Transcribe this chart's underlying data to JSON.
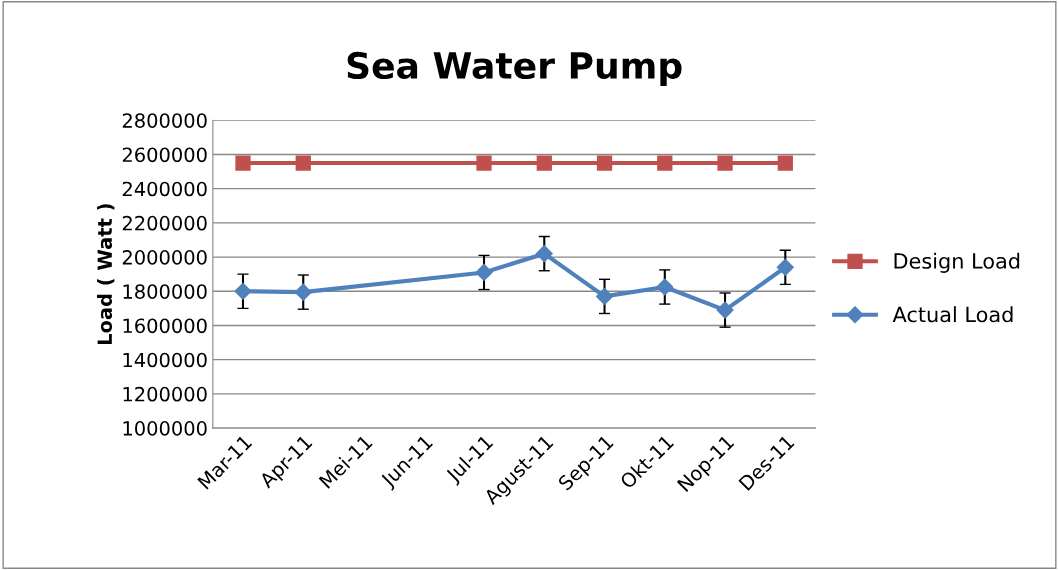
{
  "chart_data": {
    "type": "line",
    "title": "Sea Water Pump",
    "ylabel": "Load ( Watt )",
    "categories": [
      "Mar-11",
      "Apr-11",
      "Mei-11",
      "Jun-11",
      "Jul-11",
      "Agust-11",
      "Sep-11",
      "Okt-11",
      "Nop-11",
      "Des-11"
    ],
    "series": [
      {
        "name": "Design Load",
        "color": "#c0504d",
        "marker": "square",
        "values": [
          2550000,
          2550000,
          null,
          null,
          2550000,
          2550000,
          2550000,
          2550000,
          2550000,
          2550000
        ]
      },
      {
        "name": "Actual Load",
        "color": "#4f81bd",
        "marker": "diamond",
        "values": [
          1800000,
          1795000,
          null,
          null,
          1910000,
          2020000,
          1770000,
          1825000,
          1690000,
          1940000
        ],
        "errors": [
          100000,
          100000,
          null,
          null,
          100000,
          100000,
          100000,
          100000,
          100000,
          100000
        ]
      }
    ],
    "ylim": [
      1000000,
      2800000
    ],
    "yticks": [
      1000000,
      1200000,
      1400000,
      1600000,
      1800000,
      2000000,
      2200000,
      2400000,
      2600000,
      2800000
    ],
    "grid": "y",
    "legend": "right"
  }
}
